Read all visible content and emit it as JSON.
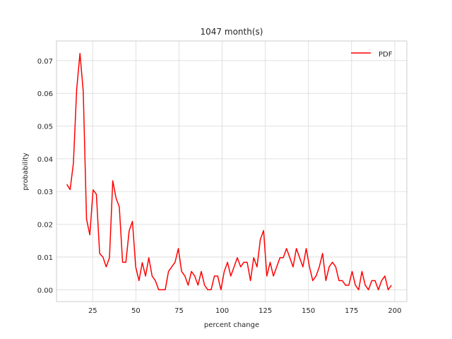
{
  "chart_data": {
    "type": "line",
    "title": "1047 month(s)",
    "xlabel": "percent change",
    "ylabel": "probability",
    "xlim": [
      4,
      207
    ],
    "ylim": [
      -0.0036,
      0.076
    ],
    "grid": true,
    "legend_placement": "top-right",
    "xticks": [
      25,
      50,
      75,
      100,
      125,
      150,
      175,
      200
    ],
    "yticks": [
      0.0,
      0.01,
      0.02,
      0.03,
      0.04,
      0.05,
      0.06,
      0.07
    ],
    "ytick_labels": [
      "0.00",
      "0.01",
      "0.02",
      "0.03",
      "0.04",
      "0.05",
      "0.06",
      "0.07"
    ],
    "series": [
      {
        "name": "PDF",
        "color": "#ff0000",
        "x": [
          10,
          11.9,
          13.8,
          15.7,
          17.6,
          19.5,
          21.4,
          23.3,
          25.2,
          27.1,
          29,
          30.9,
          32.8,
          34.7,
          36.6,
          38.5,
          40.4,
          42.3,
          44.2,
          46.1,
          48,
          49.9,
          51.8,
          53.7,
          55.6,
          57.5,
          59.4,
          61.3,
          63.2,
          65.1,
          67,
          68.9,
          70.8,
          72.7,
          74.6,
          76.5,
          78.4,
          80.3,
          82.2,
          84.1,
          86,
          87.9,
          89.8,
          91.7,
          93.6,
          95.5,
          97.4,
          99.3,
          101.2,
          103.1,
          105,
          106.9,
          108.8,
          110.7,
          112.6,
          114.5,
          116.4,
          118.3,
          120.2,
          122.1,
          124,
          125.9,
          127.8,
          129.7,
          131.6,
          133.5,
          135.4,
          137.3,
          139.2,
          141.1,
          143,
          144.9,
          146.8,
          148.7,
          150.6,
          152.5,
          154.4,
          156.3,
          158.2,
          160.1,
          162,
          163.9,
          165.8,
          167.7,
          169.6,
          171.5,
          173.4,
          175.3,
          177.2,
          179.1,
          181,
          182.9,
          184.8,
          186.7,
          188.6,
          190.5,
          192.4,
          194.3,
          196.2,
          198.1
        ],
        "y": [
          0.0322,
          0.0306,
          0.0387,
          0.0613,
          0.0722,
          0.0606,
          0.0216,
          0.0168,
          0.0305,
          0.0292,
          0.0111,
          0.01,
          0.007,
          0.0098,
          0.0333,
          0.028,
          0.0253,
          0.0084,
          0.0084,
          0.018,
          0.0209,
          0.007,
          0.0028,
          0.0083,
          0.0042,
          0.0098,
          0.0042,
          0.0028,
          0.0,
          0.0,
          0.0,
          0.0056,
          0.007,
          0.0084,
          0.0126,
          0.0056,
          0.0042,
          0.0014,
          0.0056,
          0.0042,
          0.0014,
          0.0056,
          0.0014,
          0.0,
          0.0,
          0.0042,
          0.0042,
          0.0,
          0.0056,
          0.0084,
          0.0042,
          0.007,
          0.0098,
          0.007,
          0.0084,
          0.0084,
          0.0028,
          0.0098,
          0.007,
          0.0153,
          0.0181,
          0.0042,
          0.0084,
          0.0042,
          0.007,
          0.0098,
          0.0098,
          0.0126,
          0.0098,
          0.007,
          0.0126,
          0.0098,
          0.007,
          0.0126,
          0.007,
          0.0028,
          0.0042,
          0.007,
          0.0111,
          0.0028,
          0.007,
          0.0084,
          0.007,
          0.0028,
          0.0028,
          0.0014,
          0.0014,
          0.0056,
          0.0014,
          0.0,
          0.0056,
          0.0014,
          0.0,
          0.0028,
          0.0028,
          0.0,
          0.0028,
          0.0042,
          0.0,
          0.0014
        ]
      }
    ]
  }
}
